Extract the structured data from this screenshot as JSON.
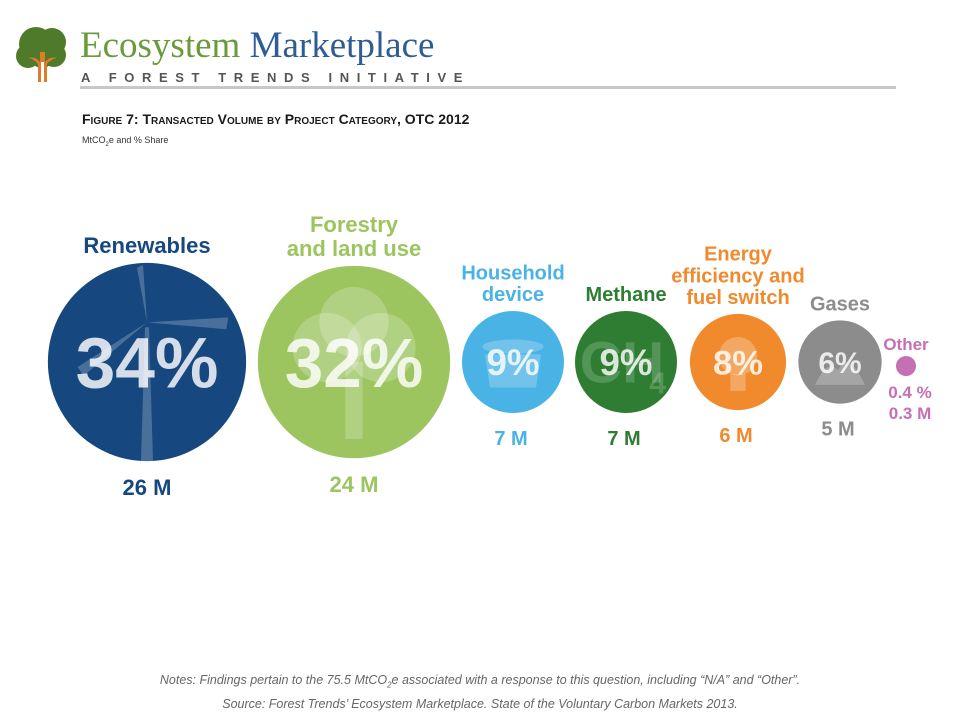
{
  "header": {
    "brand_word1": "Ecosystem",
    "brand_word2": "Marketplace",
    "tagline": "A FOREST TRENDS INITIATIVE",
    "figure_title": "Figure 7: Transacted Volume by Project Category, OTC 2012",
    "subtitle_pre": "MtCO",
    "subtitle_sub": "2",
    "subtitle_post": "e and % Share"
  },
  "chart_data": {
    "type": "bubble",
    "title": "Figure 7: Transacted Volume by Project Category, OTC 2012",
    "unit": "MtCO2e and % Share",
    "categories": [
      {
        "name_lines": [
          "Renewables"
        ],
        "share_label": "34%",
        "share": 34,
        "volume_label": "26 M",
        "volume": 26,
        "color": "#16487f",
        "label_color": "#16487f",
        "icon": "wind-turbine-icon"
      },
      {
        "name_lines": [
          "Forestry",
          "and land use"
        ],
        "share_label": "32%",
        "share": 32,
        "volume_label": "24 M",
        "volume": 24,
        "color": "#9cc45f",
        "label_color": "#9cc45f",
        "icon": "tree-icon"
      },
      {
        "name_lines": [
          "Household",
          "device"
        ],
        "share_label": "9%",
        "share": 9,
        "volume_label": "7 M",
        "volume": 7,
        "color": "#4ab3e6",
        "label_color": "#4ab3e6",
        "icon": "cookstove-icon"
      },
      {
        "name_lines": [
          "Methane"
        ],
        "share_label": "9%",
        "share": 9,
        "volume_label": "7 M",
        "volume": 7,
        "color": "#2e7d32",
        "label_color": "#2e7d32",
        "icon": "ch4-icon"
      },
      {
        "name_lines": [
          "Energy",
          "efficiency and",
          "fuel switch"
        ],
        "share_label": "8%",
        "share": 8,
        "volume_label": "6 M",
        "volume": 6,
        "color": "#f08a2c",
        "label_color": "#f08a2c",
        "icon": "light-bulb-icon"
      },
      {
        "name_lines": [
          "Gases"
        ],
        "share_label": "6%",
        "share": 6,
        "volume_label": "5 M",
        "volume": 5,
        "color": "#8c8c8c",
        "label_color": "#8c8c8c",
        "icon": "gas-cloud-icon"
      },
      {
        "name_lines": [
          "Other"
        ],
        "share_label": "0.4 %",
        "share": 0.4,
        "volume_label": "0.3 M",
        "volume": 0.3,
        "color": "#c56fb5",
        "label_color": "#c56fb5",
        "icon": ""
      }
    ]
  },
  "notes": {
    "line1_pre": "Notes: Findings pertain to the 75.5 MtCO",
    "line1_sub": "2",
    "line1_post": "e associated with a response to this question, including “N/A” and “Other”.",
    "line2": "Source: Forest Trends’ Ecosystem Marketplace. State of the Voluntary Carbon Markets 2013."
  }
}
